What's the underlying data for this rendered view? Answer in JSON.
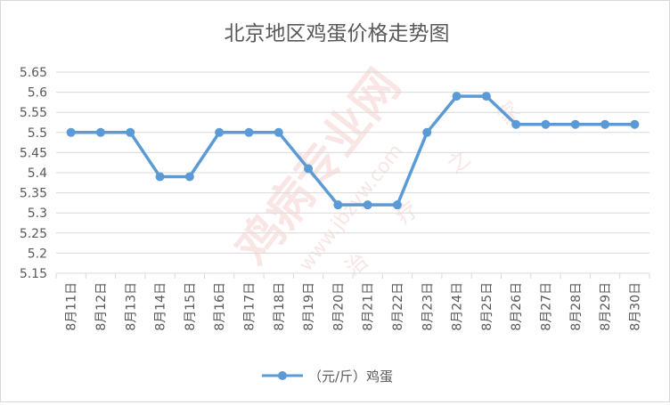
{
  "chart_data": {
    "type": "line",
    "title": "北京地区鸡蛋价格走势图",
    "xlabel": "",
    "ylabel": "",
    "ylim": [
      5.15,
      5.65
    ],
    "yticks": [
      "5.65",
      "5.6",
      "5.55",
      "5.5",
      "5.45",
      "5.4",
      "5.35",
      "5.3",
      "5.25",
      "5.2",
      "5.15"
    ],
    "categories": [
      "8月11日",
      "8月12日",
      "8月13日",
      "8月14日",
      "8月15日",
      "8月16日",
      "8月17日",
      "8月18日",
      "8月19日",
      "8月20日",
      "8月21日",
      "8月22日",
      "8月23日",
      "8月24日",
      "8月25日",
      "8月26日",
      "8月27日",
      "8月28日",
      "8月29日",
      "8月30日"
    ],
    "series": [
      {
        "name": "（元/斤）鸡蛋",
        "values": [
          5.5,
          5.5,
          5.5,
          5.39,
          5.39,
          5.5,
          5.5,
          5.5,
          5.41,
          5.32,
          5.32,
          5.32,
          5.5,
          5.59,
          5.59,
          5.52,
          5.52,
          5.52,
          5.52,
          5.52
        ]
      }
    ],
    "grid": true,
    "legend": "bottom",
    "colors": {
      "line": "#5b9bd5",
      "grid": "#d9d9d9",
      "text": "#595959",
      "watermark": "#e03c3c"
    },
    "watermark": [
      "鸡病专业网",
      "www.jbzyw.com",
      "治",
      "疗",
      "之",
      "家"
    ]
  }
}
